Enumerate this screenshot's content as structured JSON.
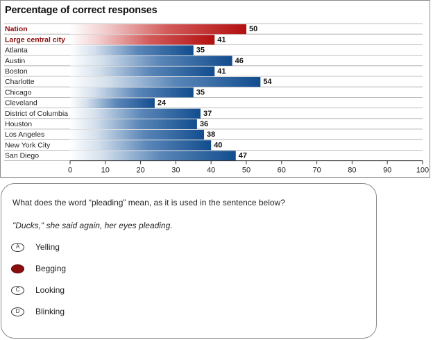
{
  "chart_data": {
    "type": "bar",
    "orientation": "horizontal",
    "title": "Percentage of correct responses",
    "categories": [
      "Nation",
      "Large central city",
      "Atlanta",
      "Austin",
      "Boston",
      "Charlotte",
      "Chicago",
      "Cleveland",
      "District of Columbia",
      "Houston",
      "Los Angeles",
      "New York City",
      "San Diego"
    ],
    "values": [
      50,
      41,
      35,
      46,
      41,
      54,
      35,
      24,
      37,
      36,
      38,
      40,
      47
    ],
    "highlighted": [
      "Nation",
      "Large central city"
    ],
    "xlim": [
      0,
      100
    ],
    "xticks": [
      0,
      10,
      20,
      30,
      40,
      50,
      60,
      70,
      80,
      90,
      100
    ],
    "xlabel": "",
    "ylabel": "",
    "colors": {
      "highlight": "#b30f10",
      "default": "#124d8e",
      "highlight_label": "#8b0d0d"
    }
  },
  "question": {
    "prompt": "What does the word “pleading” mean, as it is used in the sentence below?",
    "quote": "\"Ducks,\" she said again, her eyes pleading.",
    "options": [
      {
        "letter": "A",
        "text": "Yelling",
        "selected": false
      },
      {
        "letter": "B",
        "text": "Begging",
        "selected": true
      },
      {
        "letter": "C",
        "text": "Looking",
        "selected": false
      },
      {
        "letter": "D",
        "text": "Blinking",
        "selected": false
      }
    ],
    "selected_color": "#8b0d0d"
  }
}
